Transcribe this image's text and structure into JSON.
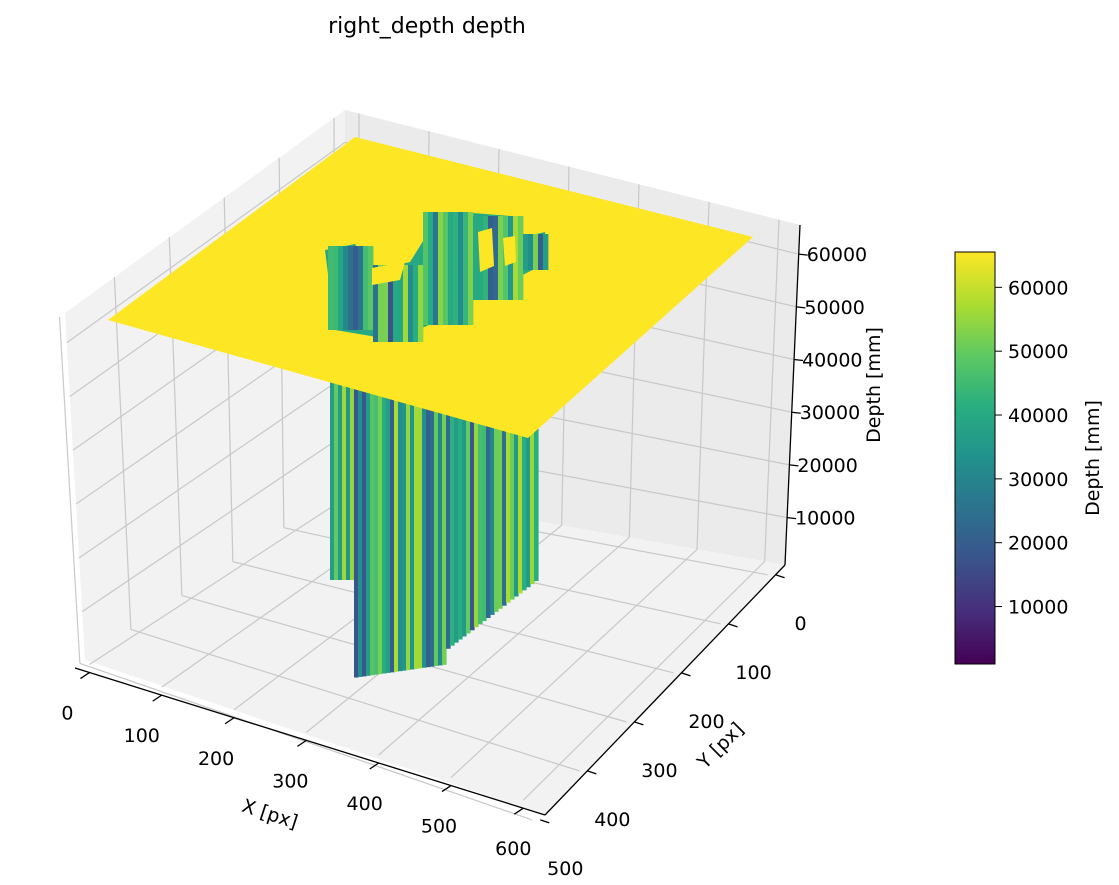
{
  "chart_data": {
    "type": "surface3d",
    "title": "right_depth depth",
    "xlabel": "X [px]",
    "ylabel": "Y [px]",
    "zlabel": "Depth [mm]",
    "colorbar_label": "Depth [mm]",
    "colormap": "viridis",
    "x_ticks": [
      "0",
      "100",
      "200",
      "300",
      "400",
      "500",
      "600"
    ],
    "y_ticks": [
      "0",
      "100",
      "200",
      "300",
      "400",
      "500"
    ],
    "z_ticks": [
      "10000",
      "20000",
      "30000",
      "40000",
      "50000",
      "60000"
    ],
    "colorbar_ticks": [
      "10000",
      "20000",
      "30000",
      "40000",
      "50000",
      "60000"
    ],
    "xlim": [
      0,
      640
    ],
    "ylim": [
      0,
      480
    ],
    "zlim": [
      1000,
      65535
    ],
    "background_depth": 65535,
    "object_depth_range": [
      10000,
      55000
    ],
    "grid": true,
    "colorbar_position": "right"
  }
}
